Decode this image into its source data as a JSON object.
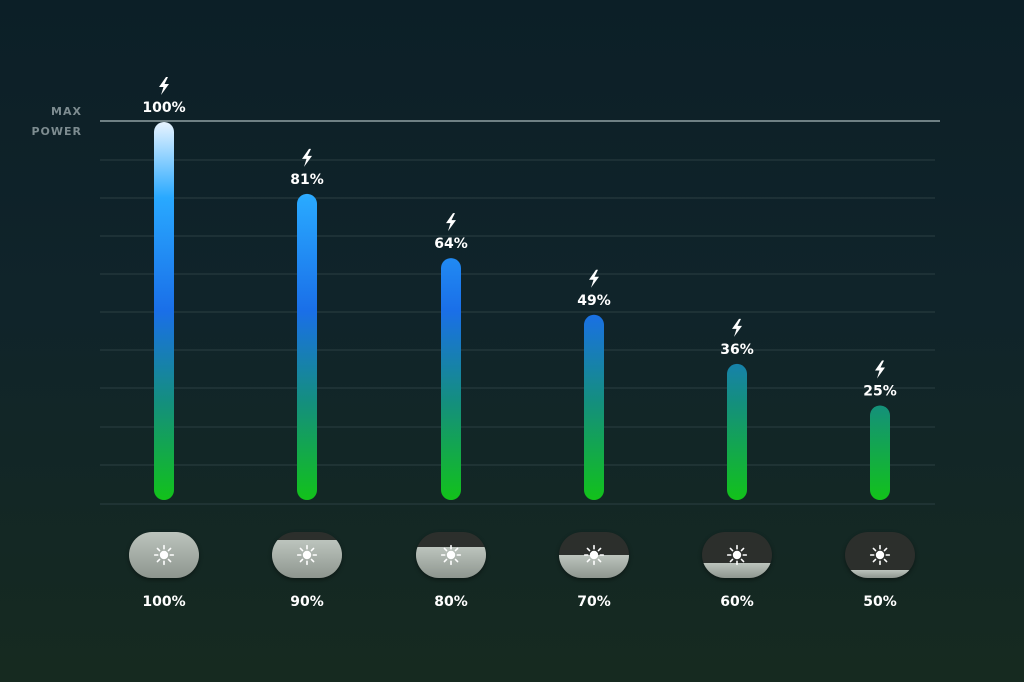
{
  "axis": {
    "max_line1": "MAX",
    "max_line2": "POWER"
  },
  "chart_data": {
    "type": "bar",
    "categories": [
      "100%",
      "90%",
      "80%",
      "70%",
      "60%",
      "50%"
    ],
    "values": [
      100,
      81,
      64,
      49,
      36,
      25
    ],
    "value_labels": [
      "100%",
      "81%",
      "64%",
      "49%",
      "36%",
      "25%"
    ],
    "brightness_levels": [
      100,
      90,
      80,
      70,
      60,
      50
    ],
    "ylim": [
      0,
      100
    ],
    "grid": true,
    "title": "",
    "xlabel": "",
    "ylabel": "",
    "colors": {
      "bar_top": "#e8f4ff",
      "bar_upper": "#29a9ff",
      "bar_mid": "#1a6fe8",
      "bar_lower": "#14907a",
      "bar_bottom": "#12c21a",
      "grid": "#2b3f42",
      "max_line": "#8f9fa2"
    },
    "icons": {
      "value_marker": "lightning-bolt-icon",
      "category_marker": "sun-icon"
    }
  }
}
